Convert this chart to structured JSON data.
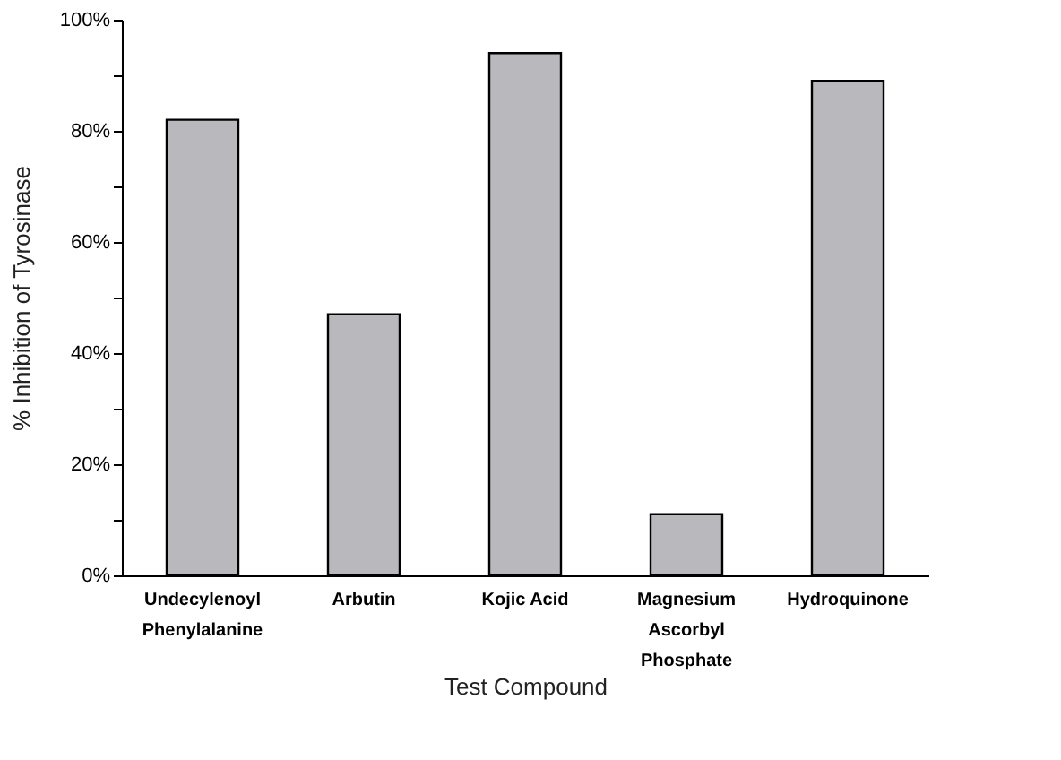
{
  "chart_data": {
    "type": "bar",
    "xlabel": "Test Compound",
    "ylabel": "% Inhibition of Tyrosinase",
    "categories": [
      "Undecylenoyl\nPhenylalanine",
      "Arbutin",
      "Kojic Acid",
      "Magnesium\nAscorbyl\nPhosphate",
      "Hydroquinone"
    ],
    "values": [
      82,
      47,
      94,
      11,
      89
    ],
    "color": "#b9b9bd",
    "ylim": [
      0,
      100
    ],
    "yticks": [
      {
        "value": 0,
        "label": "0%"
      },
      {
        "value": 10,
        "label": null
      },
      {
        "value": 20,
        "label": "20%"
      },
      {
        "value": 30,
        "label": null
      },
      {
        "value": 40,
        "label": "40%"
      },
      {
        "value": 50,
        "label": null
      },
      {
        "value": 60,
        "label": "60%"
      },
      {
        "value": 70,
        "label": null
      },
      {
        "value": 80,
        "label": "80%"
      },
      {
        "value": 90,
        "label": null
      },
      {
        "value": 100,
        "label": "100%"
      }
    ],
    "grid": false
  }
}
